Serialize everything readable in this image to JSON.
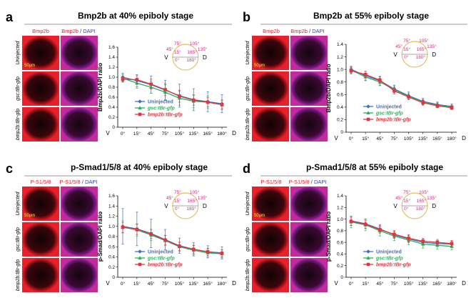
{
  "figure": {
    "background": "#ffffff",
    "panels": [
      {
        "letter": "a",
        "title": "Bmp2b at 40% epiboly stage",
        "header": {
          "left": "Bmp2b",
          "right_red": "Bmp2b",
          "right_sep": " / ",
          "right_blue": "DAPI"
        },
        "row_labels": [
          "Uninjected",
          "gsc:tBr-gfp",
          "bmp2b:tBr-gfp"
        ],
        "scale_bar": "50μm"
      },
      {
        "letter": "b",
        "title": "Bmp2b at 55% epiboly stage",
        "header": {
          "left": "Bmp2b",
          "right_red": "Bmp2b",
          "right_sep": " / ",
          "right_blue": "DAPI"
        },
        "row_labels": [
          "Uninjected",
          "gsc:tBr-gfp",
          "bmp2b:tBr-gfp"
        ],
        "scale_bar": "50μm"
      },
      {
        "letter": "c",
        "title": "p-Smad1/5/8 at 40% epiboly stage",
        "header": {
          "left": "P-S1/5/8",
          "right_red": "P-S1/5/8",
          "right_sep": " / ",
          "right_blue": "DAPI"
        },
        "row_labels": [
          "Uninjected",
          "gsc:tBr-gfp",
          "bmp2b:tBr-gfp"
        ],
        "scale_bar": "50μm"
      },
      {
        "letter": "d",
        "title": "p-Smad1/5/8 at 55% epiboly stage",
        "header": {
          "left": "P-S1/5/8",
          "right_red": "P-S1/5/8",
          "right_sep": " / ",
          "right_blue": "DAPI"
        },
        "row_labels": [
          "Uninjected",
          "gsc:tBr-gfp",
          "bmp2b:tBr-gfp"
        ],
        "scale_bar": "50μm"
      }
    ],
    "colors": {
      "uninjected": "#3b6fd1",
      "gsc": "#27b35a",
      "bmp2b": "#e0363f",
      "dapi": "#3340c8",
      "signal": "#e8202b",
      "angle": "#d6287e",
      "circle": "#d9b13a"
    }
  },
  "chart_data": [
    {
      "type": "line",
      "panel": "a",
      "x": [
        "0°",
        "15°",
        "45°",
        "75°",
        "105°",
        "135°",
        "165°",
        "180°"
      ],
      "ylabel": "Bmp2b/DAPI ratio",
      "ylim": [
        0,
        1.6
      ],
      "yticks": [
        "0",
        "0.2",
        "0.4",
        "0.6",
        "0.8",
        "1.0",
        "1.2",
        "1.4",
        "1.6"
      ],
      "axis_end_labels": {
        "left": "V",
        "right": "D"
      },
      "series": [
        {
          "name": "Uninjected",
          "values": [
            1.0,
            0.93,
            0.85,
            0.74,
            0.63,
            0.55,
            0.51,
            0.47
          ],
          "errors": [
            0.08,
            0.12,
            0.17,
            0.2,
            0.23,
            0.22,
            0.2,
            0.18
          ]
        },
        {
          "name": "gsc:tBr-gfp",
          "values": [
            0.98,
            0.88,
            0.8,
            0.7,
            0.58,
            0.52,
            0.5,
            0.45
          ],
          "errors": [
            0.07,
            0.1,
            0.12,
            0.15,
            0.14,
            0.13,
            0.12,
            0.1
          ]
        },
        {
          "name": "bmp2b:tBr-gfp",
          "values": [
            0.96,
            0.95,
            0.86,
            0.75,
            0.62,
            0.54,
            0.5,
            0.45
          ],
          "errors": [
            0.06,
            0.08,
            0.1,
            0.12,
            0.12,
            0.1,
            0.09,
            0.08
          ]
        }
      ],
      "inset_angles": [
        "0°",
        "15°",
        "45°",
        "75°",
        "105°",
        "135°",
        "165°",
        "180°"
      ]
    },
    {
      "type": "line",
      "panel": "b",
      "x": [
        "0°",
        "15°",
        "45°",
        "75°",
        "105°",
        "135°",
        "165°",
        "180°"
      ],
      "ylabel": "Bmp2b/DAPI ratio",
      "ylim": [
        0,
        1.4
      ],
      "yticks": [
        "0",
        "0.2",
        "0.4",
        "0.6",
        "0.8",
        "1.0",
        "1.2",
        "1.4"
      ],
      "axis_end_labels": {
        "left": "V",
        "right": "D"
      },
      "series": [
        {
          "name": "Uninjected",
          "values": [
            1.0,
            0.9,
            0.82,
            0.69,
            0.58,
            0.49,
            0.44,
            0.41
          ],
          "errors": [
            0.05,
            0.07,
            0.07,
            0.06,
            0.06,
            0.05,
            0.04,
            0.04
          ]
        },
        {
          "name": "gsc:tBr-gfp",
          "values": [
            0.99,
            0.88,
            0.8,
            0.68,
            0.57,
            0.48,
            0.43,
            0.4
          ],
          "errors": [
            0.05,
            0.06,
            0.06,
            0.05,
            0.05,
            0.04,
            0.04,
            0.03
          ]
        },
        {
          "name": "bmp2b:tBr-gfp",
          "values": [
            0.98,
            0.92,
            0.83,
            0.66,
            0.56,
            0.47,
            0.42,
            0.39
          ],
          "errors": [
            0.05,
            0.05,
            0.05,
            0.05,
            0.04,
            0.04,
            0.03,
            0.03
          ]
        }
      ],
      "inset_angles": [
        "0°",
        "15°",
        "45°",
        "75°",
        "105°",
        "135°",
        "165°",
        "180°"
      ]
    },
    {
      "type": "line",
      "panel": "c",
      "x": [
        "0°",
        "15°",
        "45°",
        "75°",
        "105°",
        "135°",
        "165°",
        "180°"
      ],
      "ylabel": "p-Smad/DAPI ratio",
      "ylim": [
        0,
        1.6
      ],
      "yticks": [
        "0",
        "0.2",
        "0.4",
        "0.6",
        "0.8",
        "1.0",
        "1.2",
        "1.4",
        "1.6"
      ],
      "axis_end_labels": {
        "left": "V",
        "right": "D"
      },
      "series": [
        {
          "name": "Uninjected",
          "values": [
            1.0,
            0.95,
            0.86,
            0.74,
            0.62,
            0.55,
            0.5,
            0.48
          ],
          "errors": [
            0.35,
            0.33,
            0.28,
            0.2,
            0.15,
            0.13,
            0.12,
            0.12
          ]
        },
        {
          "name": "gsc:tBr-gfp",
          "values": [
            0.99,
            0.93,
            0.83,
            0.72,
            0.6,
            0.53,
            0.48,
            0.46
          ],
          "errors": [
            0.12,
            0.12,
            0.11,
            0.1,
            0.09,
            0.09,
            0.08,
            0.08
          ]
        },
        {
          "name": "bmp2b:tBr-gfp",
          "values": [
            0.98,
            0.94,
            0.85,
            0.73,
            0.61,
            0.55,
            0.5,
            0.47
          ],
          "errors": [
            0.1,
            0.1,
            0.09,
            0.09,
            0.08,
            0.08,
            0.07,
            0.07
          ]
        }
      ],
      "inset_angles": [
        "0°",
        "15°",
        "45°",
        "75°",
        "105°",
        "135°",
        "165°",
        "180°"
      ]
    },
    {
      "type": "line",
      "panel": "d",
      "x": [
        "0°",
        "15°",
        "45°",
        "75°",
        "105°",
        "135°",
        "165°",
        "180°"
      ],
      "ylabel": "p-Smad/DAPI ratio",
      "ylim": [
        0,
        1.4
      ],
      "yticks": [
        "0",
        "0.2",
        "0.4",
        "0.6",
        "0.8",
        "1.0",
        "1.2",
        "1.4"
      ],
      "axis_end_labels": {
        "left": "V",
        "right": "D"
      },
      "series": [
        {
          "name": "Uninjected",
          "values": [
            0.97,
            0.92,
            0.83,
            0.73,
            0.66,
            0.6,
            0.58,
            0.57
          ],
          "errors": [
            0.08,
            0.08,
            0.07,
            0.06,
            0.06,
            0.05,
            0.05,
            0.05
          ]
        },
        {
          "name": "gsc:tBr-gfp",
          "values": [
            0.95,
            0.9,
            0.8,
            0.71,
            0.64,
            0.57,
            0.55,
            0.53
          ],
          "errors": [
            0.1,
            0.1,
            0.09,
            0.08,
            0.08,
            0.07,
            0.07,
            0.06
          ]
        },
        {
          "name": "bmp2b:tBr-gfp",
          "values": [
            0.96,
            0.91,
            0.82,
            0.74,
            0.67,
            0.62,
            0.6,
            0.58
          ],
          "errors": [
            0.07,
            0.07,
            0.06,
            0.06,
            0.06,
            0.05,
            0.05,
            0.05
          ]
        }
      ],
      "inset_angles": [
        "0°",
        "15°",
        "45°",
        "75°",
        "105°",
        "135°",
        "165°",
        "180°"
      ]
    }
  ]
}
